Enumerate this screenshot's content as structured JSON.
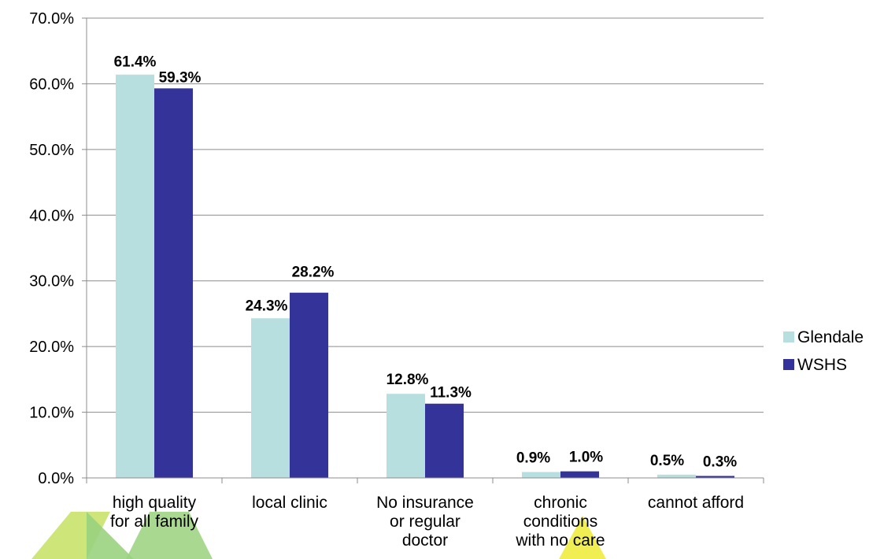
{
  "chart_data": {
    "type": "bar",
    "categories": [
      [
        "high quality",
        "for all family"
      ],
      [
        "local clinic"
      ],
      [
        "No insurance",
        "or regular",
        "doctor"
      ],
      [
        "chronic",
        "conditions",
        "with no care"
      ],
      [
        "cannot afford"
      ]
    ],
    "series": [
      {
        "name": "Glendale",
        "color": "#b7dfe0",
        "values": [
          61.4,
          24.3,
          12.8,
          0.9,
          0.5
        ],
        "labels": [
          "61.4%",
          "24.3%",
          "12.8%",
          "0.9%",
          "0.5%"
        ]
      },
      {
        "name": "WSHS",
        "color": "#333399",
        "values": [
          59.3,
          28.2,
          11.3,
          1.0,
          0.3
        ],
        "labels": [
          "59.3%",
          "28.2%",
          "11.3%",
          "1.0%",
          "0.3%"
        ]
      }
    ],
    "yticks": [
      "0.0%",
      "10.0%",
      "20.0%",
      "30.0%",
      "40.0%",
      "50.0%",
      "60.0%",
      "70.0%"
    ],
    "ylim": [
      0,
      70
    ],
    "grid": true,
    "legend_position": "right",
    "title": "",
    "xlabel": "",
    "ylabel": ""
  },
  "watermark": {
    "colors": [
      "#c8e26a",
      "#9ad27e",
      "#f0ec40"
    ]
  }
}
